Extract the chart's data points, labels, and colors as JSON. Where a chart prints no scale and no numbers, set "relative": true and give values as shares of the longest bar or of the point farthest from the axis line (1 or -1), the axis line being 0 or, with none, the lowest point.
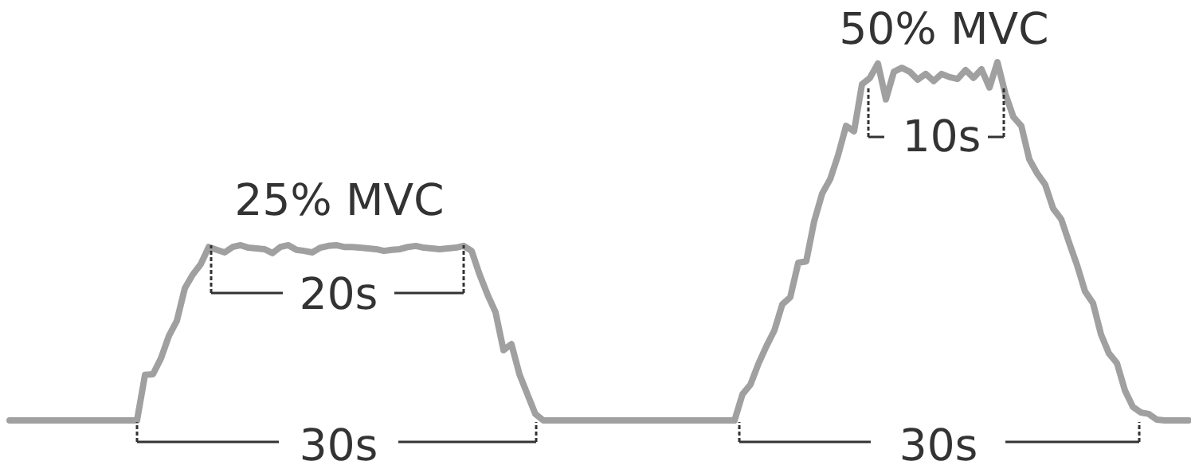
{
  "chart_data": {
    "type": "line",
    "relative": true,
    "color": "#a0a0a0",
    "categories": [
      null,
      null,
      null,
      null,
      null,
      null,
      null,
      null,
      null,
      null,
      null,
      null,
      null,
      null,
      null,
      null,
      null,
      null,
      null,
      null,
      null,
      null,
      null,
      null,
      null,
      null,
      null,
      null,
      null,
      null,
      null,
      null,
      null,
      null,
      null,
      null,
      null,
      null,
      null,
      null,
      null,
      null,
      null,
      null,
      null,
      null,
      null,
      null,
      null,
      null,
      null,
      null,
      null,
      null,
      null,
      null,
      null,
      null,
      null,
      null,
      null,
      null,
      null,
      null,
      null,
      null,
      null,
      null,
      null,
      null,
      null,
      null,
      null,
      null,
      null,
      null,
      null,
      null,
      null,
      null,
      null,
      null,
      null,
      null,
      null,
      null,
      null,
      null,
      null,
      null,
      null,
      null,
      null,
      null,
      null,
      null,
      null,
      null,
      null,
      null,
      null,
      null,
      null,
      null,
      null,
      null,
      null,
      null,
      null,
      null,
      null,
      null,
      null,
      null,
      null,
      null,
      null,
      null,
      null,
      null,
      null,
      null,
      null,
      null,
      null,
      null,
      null,
      null,
      null,
      null,
      null,
      null,
      null,
      null,
      null,
      null,
      null,
      null,
      null,
      null,
      null,
      null,
      null,
      null,
      null,
      null,
      null,
      null,
      null
    ],
    "values": [
      0,
      0,
      0,
      0,
      0,
      0,
      0,
      0,
      0,
      0,
      0,
      0,
      0,
      0,
      0,
      0,
      0,
      0.127,
      0.129,
      0.173,
      0.236,
      0.278,
      0.369,
      0.407,
      0.436,
      0.484,
      0.476,
      0.469,
      0.484,
      0.489,
      0.482,
      0.48,
      0.478,
      0.467,
      0.484,
      0.489,
      0.476,
      0.473,
      0.469,
      0.482,
      0.487,
      0.489,
      0.484,
      0.484,
      0.482,
      0.48,
      0.478,
      0.473,
      0.476,
      0.478,
      0.484,
      0.487,
      0.482,
      0.48,
      0.478,
      0.48,
      0.482,
      0.487,
      0.473,
      0.407,
      0.351,
      0.302,
      0.196,
      0.213,
      0.129,
      0.073,
      0.018,
      0,
      0,
      0,
      0,
      0,
      0,
      0,
      0,
      0,
      0,
      0,
      0,
      0,
      0,
      0,
      0,
      0,
      0,
      0,
      0,
      0,
      0,
      0,
      0,
      0,
      0.073,
      0.1,
      0.158,
      0.207,
      0.251,
      0.324,
      0.344,
      0.44,
      0.444,
      0.556,
      0.633,
      0.673,
      0.74,
      0.822,
      0.807,
      0.938,
      0.956,
      0.996,
      0.896,
      0.973,
      0.984,
      0.973,
      0.951,
      0.967,
      0.947,
      0.967,
      0.958,
      0.953,
      0.978,
      0.956,
      0.98,
      0.929,
      1,
      0.911,
      0.847,
      0.822,
      0.729,
      0.689,
      0.658,
      0.591,
      0.562,
      0.496,
      0.433,
      0.36,
      0.327,
      0.24,
      0.187,
      0.16,
      0.084,
      0.038,
      0.022,
      0.018,
      0.002,
      0,
      0,
      0,
      0
    ],
    "annotations": [
      "25% MVC",
      "50% MVC",
      "20s",
      "10s",
      "30s",
      "30s"
    ]
  }
}
